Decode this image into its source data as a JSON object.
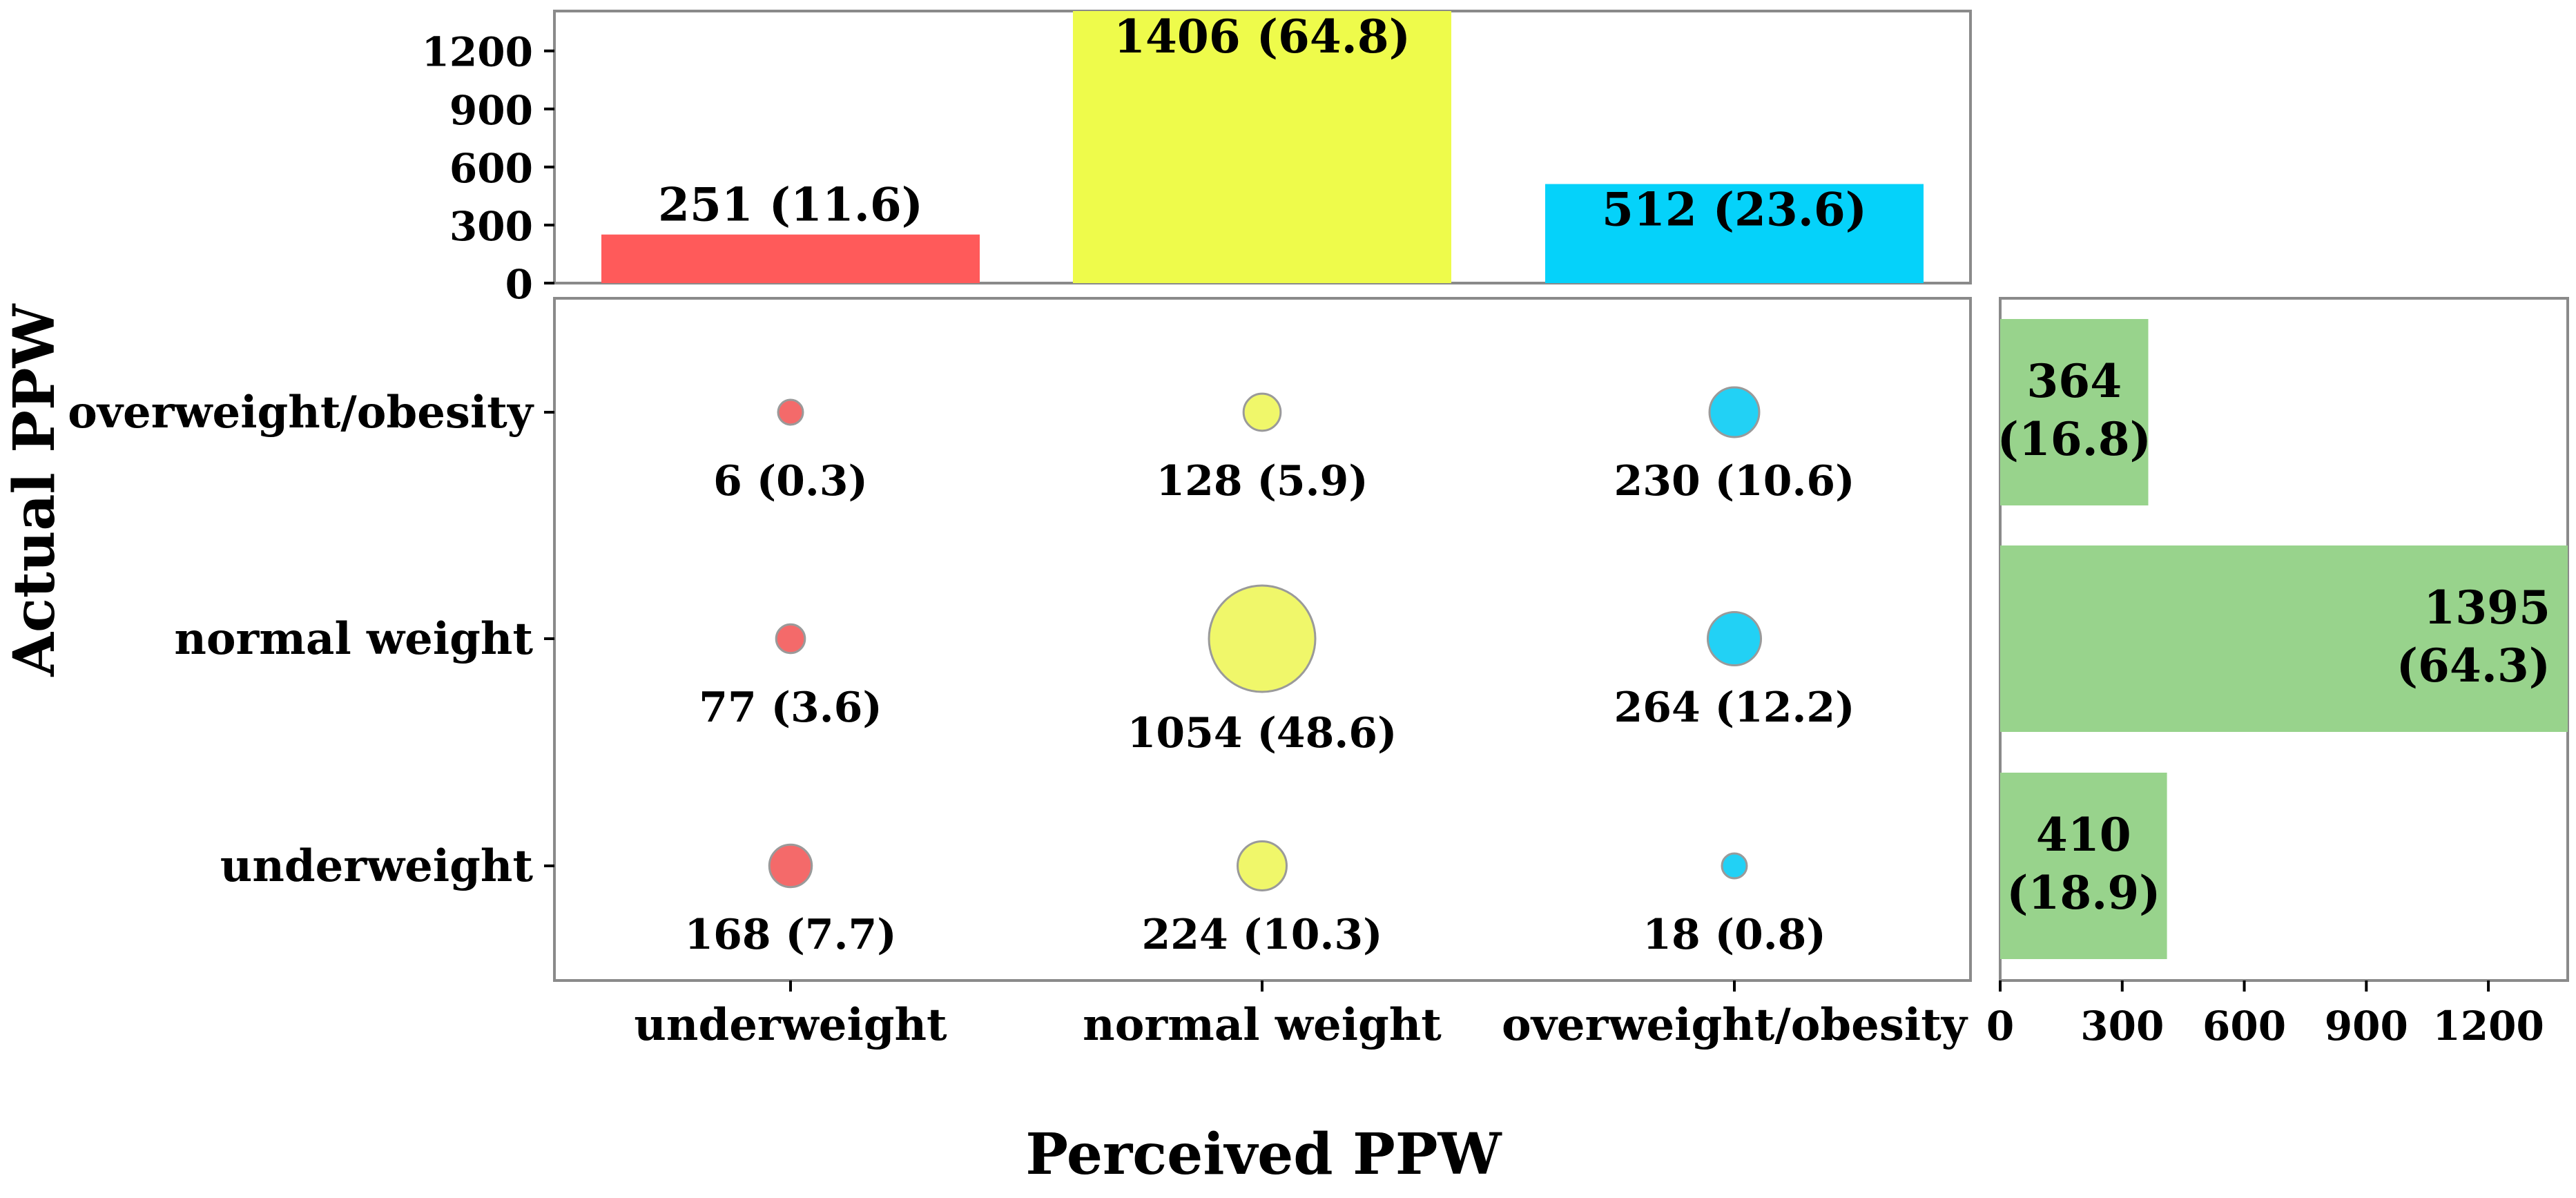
{
  "chart_data": [
    {
      "type": "bar",
      "role": "top-marginal",
      "categories": [
        "underweight",
        "normal weight",
        "overweight/obesity"
      ],
      "values": [
        251,
        1406,
        512
      ],
      "labels": [
        "251 (11.6)",
        "1406 (64.8)",
        "512 (23.6)"
      ],
      "colors": [
        "#ff5a5a",
        "#eefb4b",
        "#05d2fa"
      ],
      "ylim": [
        0,
        1406
      ],
      "yticks": [
        0,
        300,
        600,
        900,
        1200
      ],
      "ytick_labels": [
        "0",
        "300",
        "600",
        "900",
        "1200"
      ]
    },
    {
      "type": "scatter",
      "role": "bubble-matrix",
      "xlabel": "Perceived PPW",
      "ylabel": "Actual PPW",
      "x_categories": [
        "underweight",
        "normal weight",
        "overweight/obesity"
      ],
      "y_categories": [
        "overweight/obesity",
        "normal weight",
        "underweight"
      ],
      "cells": [
        {
          "x": "underweight",
          "y": "overweight/obesity",
          "value": 6,
          "label": "6 (0.3)"
        },
        {
          "x": "normal weight",
          "y": "overweight/obesity",
          "value": 128,
          "label": "128 (5.9)"
        },
        {
          "x": "overweight/obesity",
          "y": "overweight/obesity",
          "value": 230,
          "label": "230 (10.6)"
        },
        {
          "x": "underweight",
          "y": "normal weight",
          "value": 77,
          "label": "77 (3.6)"
        },
        {
          "x": "normal weight",
          "y": "normal weight",
          "value": 1054,
          "label": "1054 (48.6)"
        },
        {
          "x": "overweight/obesity",
          "y": "normal weight",
          "value": 264,
          "label": "264 (12.2)"
        },
        {
          "x": "underweight",
          "y": "underweight",
          "value": 168,
          "label": "168 (7.7)"
        },
        {
          "x": "normal weight",
          "y": "underweight",
          "value": 224,
          "label": "224 (10.3)"
        },
        {
          "x": "overweight/obesity",
          "y": "underweight",
          "value": 18,
          "label": "18 (0.8)"
        }
      ],
      "colors": [
        "#f46a6a",
        "#f0f76a",
        "#22d1f5"
      ]
    },
    {
      "type": "bar",
      "role": "right-marginal",
      "orientation": "horizontal",
      "categories": [
        "overweight/obesity",
        "normal weight",
        "underweight"
      ],
      "values": [
        364,
        1395,
        410
      ],
      "labels": [
        [
          "364",
          "(16.8)"
        ],
        [
          "1395",
          "(64.3)"
        ],
        [
          "410",
          "(18.9)"
        ]
      ],
      "color": "#98d38c",
      "xlim": [
        0,
        1395
      ],
      "xticks": [
        0,
        300,
        600,
        900,
        1200
      ],
      "xtick_labels": [
        "0",
        "300",
        "600",
        "900",
        "1200"
      ]
    }
  ]
}
